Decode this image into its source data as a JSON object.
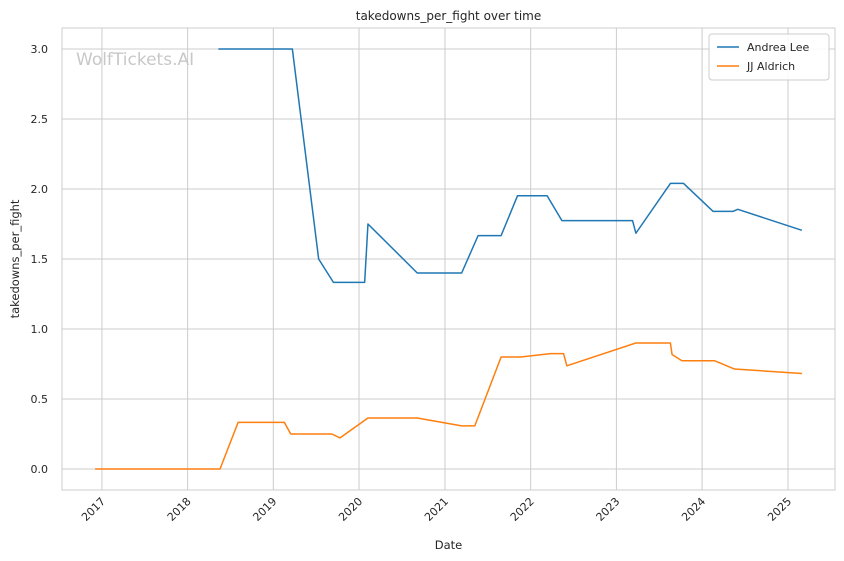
{
  "chart_data": {
    "type": "line",
    "title": "takedowns_per_fight over time",
    "xlabel": "Date",
    "ylabel": "takedowns_per_fight",
    "watermark": "WolfTickets.AI",
    "xlim": [
      "2016-07-15",
      "2025-07-20"
    ],
    "ylim": [
      -0.15,
      3.15
    ],
    "x_ticks": [
      "2017-01-01",
      "2018-01-01",
      "2019-01-01",
      "2020-01-01",
      "2021-01-01",
      "2022-01-01",
      "2023-01-01",
      "2024-01-01",
      "2025-01-01"
    ],
    "x_tick_labels": [
      "2017",
      "2018",
      "2019",
      "2020",
      "2021",
      "2022",
      "2023",
      "2024",
      "2025"
    ],
    "y_ticks": [
      0.0,
      0.5,
      1.0,
      1.5,
      2.0,
      2.5,
      3.0
    ],
    "y_tick_labels": [
      "0.0",
      "0.5",
      "1.0",
      "1.5",
      "2.0",
      "2.5",
      "3.0"
    ],
    "grid": true,
    "legend_position": "top-right",
    "series": [
      {
        "name": "Andrea Lee",
        "color": "#1f77b4",
        "points": [
          [
            "2018-05-12",
            3.0
          ],
          [
            "2019-03-23",
            3.0
          ],
          [
            "2019-07-13",
            1.5
          ],
          [
            "2019-09-14",
            1.333
          ],
          [
            "2020-01-25",
            1.333
          ],
          [
            "2020-02-08",
            1.75
          ],
          [
            "2020-09-05",
            1.4
          ],
          [
            "2021-03-13",
            1.4
          ],
          [
            "2021-05-22",
            1.667
          ],
          [
            "2021-08-28",
            1.667
          ],
          [
            "2021-11-06",
            1.952
          ],
          [
            "2022-03-12",
            1.952
          ],
          [
            "2022-05-14",
            1.774
          ],
          [
            "2023-03-11",
            1.774
          ],
          [
            "2023-03-25",
            1.684
          ],
          [
            "2023-08-19",
            2.04
          ],
          [
            "2023-10-14",
            2.04
          ],
          [
            "2024-02-17",
            1.84
          ],
          [
            "2024-05-11",
            1.84
          ],
          [
            "2024-06-01",
            1.855
          ],
          [
            "2025-03-01",
            1.705
          ]
        ]
      },
      {
        "name": "JJ Aldrich",
        "color": "#ff7f0e",
        "points": [
          [
            "2016-12-03",
            0.0
          ],
          [
            "2018-05-19",
            0.0
          ],
          [
            "2018-08-04",
            0.333
          ],
          [
            "2019-02-17",
            0.333
          ],
          [
            "2019-03-16",
            0.25
          ],
          [
            "2019-09-07",
            0.25
          ],
          [
            "2019-10-12",
            0.222
          ],
          [
            "2020-02-08",
            0.364
          ],
          [
            "2020-09-05",
            0.364
          ],
          [
            "2021-03-13",
            0.308
          ],
          [
            "2021-05-08",
            0.308
          ],
          [
            "2021-08-28",
            0.8
          ],
          [
            "2021-11-20",
            0.8
          ],
          [
            "2022-03-26",
            0.824
          ],
          [
            "2022-05-21",
            0.824
          ],
          [
            "2022-06-04",
            0.737
          ],
          [
            "2023-03-25",
            0.9
          ],
          [
            "2023-08-19",
            0.9
          ],
          [
            "2023-08-26",
            0.818
          ],
          [
            "2023-10-07",
            0.773
          ],
          [
            "2024-02-24",
            0.773
          ],
          [
            "2024-05-18",
            0.714
          ],
          [
            "2025-03-01",
            0.682
          ]
        ]
      }
    ]
  }
}
